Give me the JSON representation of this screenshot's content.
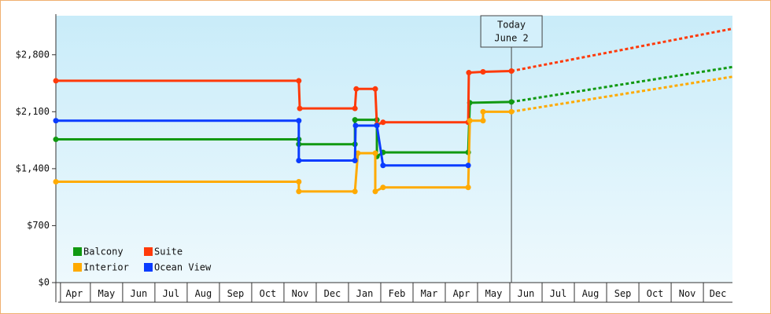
{
  "chart_data": {
    "type": "line",
    "ylim": [
      0,
      3280
    ],
    "yticks": [
      {
        "value": 0,
        "label": "$0"
      },
      {
        "value": 700,
        "label": "$700"
      },
      {
        "value": 1400,
        "label": "$1,400"
      },
      {
        "value": 2100,
        "label": "$2,100"
      },
      {
        "value": 2800,
        "label": "$2,800"
      }
    ],
    "xlim": [
      -0.07,
      20.9
    ],
    "xticks": [
      {
        "value": 0.5,
        "label": "Apr"
      },
      {
        "value": 1.5,
        "label": "May"
      },
      {
        "value": 2.5,
        "label": "Jun"
      },
      {
        "value": 3.5,
        "label": "Jul"
      },
      {
        "value": 4.5,
        "label": "Aug"
      },
      {
        "value": 5.5,
        "label": "Sep"
      },
      {
        "value": 6.5,
        "label": "Oct"
      },
      {
        "value": 7.5,
        "label": "Nov"
      },
      {
        "value": 8.5,
        "label": "Dec"
      },
      {
        "value": 9.5,
        "label": "Jan"
      },
      {
        "value": 10.5,
        "label": "Feb"
      },
      {
        "value": 11.5,
        "label": "Mar"
      },
      {
        "value": 12.5,
        "label": "Apr"
      },
      {
        "value": 13.5,
        "label": "May"
      },
      {
        "value": 14.5,
        "label": "Jun"
      },
      {
        "value": 15.5,
        "label": "Jul"
      },
      {
        "value": 16.5,
        "label": "Aug"
      },
      {
        "value": 17.5,
        "label": "Sep"
      },
      {
        "value": 18.5,
        "label": "Oct"
      },
      {
        "value": 19.5,
        "label": "Nov"
      },
      {
        "value": 20.45,
        "label": "Dec"
      }
    ],
    "annotation": {
      "text": [
        "Today",
        "June 2"
      ],
      "x": 14.05
    },
    "legend": "lower left",
    "series": [
      {
        "name": "Balcony",
        "color": "#119911",
        "x": [
          -0.07,
          7.46,
          7.46,
          9.2,
          9.2,
          9.88,
          9.88,
          10.07,
          12.71,
          12.76,
          14.05
        ],
        "values": [
          1760,
          1760,
          1700,
          1700,
          2000,
          2000,
          1550,
          1600,
          1600,
          2210,
          2220
        ],
        "forecast_x": [
          14.05,
          20.9
        ],
        "forecast_values": [
          2220,
          2650
        ]
      },
      {
        "name": "Suite",
        "color": "#ff3a0a",
        "x": [
          -0.07,
          7.46,
          7.49,
          9.2,
          9.24,
          9.83,
          9.88,
          10.07,
          12.71,
          12.73,
          13.17,
          14.05
        ],
        "values": [
          2480,
          2480,
          2140,
          2140,
          2380,
          2380,
          1940,
          1970,
          1970,
          2580,
          2590,
          2600
        ],
        "forecast_x": [
          14.05,
          20.9
        ],
        "forecast_values": [
          2600,
          3120
        ]
      },
      {
        "name": "Interior",
        "color": "#ffaa00",
        "x": [
          -0.07,
          7.46,
          7.46,
          9.2,
          9.29,
          9.83,
          9.83,
          10.07,
          12.71,
          12.76,
          13.17,
          13.17,
          14.05
        ],
        "values": [
          1240,
          1240,
          1120,
          1120,
          1590,
          1590,
          1120,
          1170,
          1170,
          1990,
          1990,
          2100,
          2100
        ],
        "forecast_x": [
          14.05,
          20.9
        ],
        "forecast_values": [
          2100,
          2530
        ]
      },
      {
        "name": "Ocean View",
        "color": "#0a3cff",
        "x": [
          -0.07,
          7.46,
          7.46,
          9.2,
          9.22,
          9.88,
          10.07,
          12.71
        ],
        "values": [
          1990,
          1990,
          1500,
          1500,
          1930,
          1930,
          1440,
          1440
        ]
      }
    ]
  }
}
